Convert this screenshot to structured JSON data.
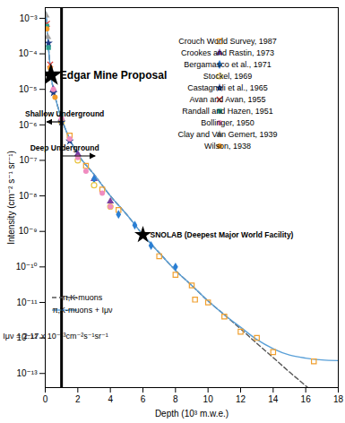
{
  "chart_data": {
    "type": "scatter",
    "x_label": "Depth (10³ m.w.e.)",
    "y_label": "Intensity (cm⁻² s⁻¹ sr⁻¹)",
    "log": "y",
    "xlim": [
      0,
      18
    ],
    "xticks": [
      0,
      2,
      4,
      6,
      8,
      10,
      12,
      14,
      16,
      18
    ],
    "ylim": [
      4e-14,
      0.002
    ],
    "yticks": [
      {
        "value": 0.001,
        "label": "10⁻³"
      },
      {
        "value": 0.0001,
        "label": "10⁻⁴"
      },
      {
        "value": 1e-05,
        "label": "10⁻⁵"
      },
      {
        "value": 1e-06,
        "label": "10⁻⁶"
      },
      {
        "value": 1e-07,
        "label": "10⁻⁷"
      },
      {
        "value": 1e-08,
        "label": "10⁻⁸"
      },
      {
        "value": 1e-09,
        "label": "10⁻⁹"
      },
      {
        "value": 1e-10,
        "label": "10⁻¹⁰"
      },
      {
        "value": 1e-11,
        "label": "10⁻¹¹"
      },
      {
        "value": 1e-12,
        "label": "10⁻¹²"
      },
      {
        "value": 1e-13,
        "label": "10⁻¹³"
      }
    ],
    "legend": "top-right",
    "series": [
      {
        "name": "Crouch World Survey, 1987",
        "color": "#f0a030",
        "marker": "open_square",
        "x": [
          1.5,
          2.5,
          3.5,
          4.5,
          6,
          7,
          8,
          9,
          9.2,
          10,
          11,
          12,
          13,
          14,
          16.5
        ],
        "values": [
          5e-07,
          7e-08,
          1.5e-08,
          4e-09,
          8e-10,
          2e-10,
          6e-11,
          3e-11,
          1.2e-11,
          1e-11,
          4e-12,
          1.5e-12,
          1e-12,
          4e-13,
          2.2e-13
        ]
      },
      {
        "name": "Crookes and Rastin, 1973",
        "color": "#7b3fa0",
        "marker": "triangle",
        "x": [
          0.5,
          1,
          2,
          3,
          4
        ],
        "values": [
          1e-05,
          1.5e-06,
          1.5e-07,
          3e-08,
          7e-09
        ]
      },
      {
        "name": "Bergamasco et al., 1971",
        "color": "#2a7fd4",
        "marker": "diamond",
        "x": [
          3,
          4.5,
          5.5,
          6.5,
          8
        ],
        "values": [
          3e-08,
          3e-09,
          1.5e-09,
          4e-10,
          1e-10
        ]
      },
      {
        "name": "Stockel, 1969",
        "color": "#e8c440",
        "marker": "open_circle",
        "x": [
          1,
          2,
          3,
          4
        ],
        "values": [
          1.2e-06,
          1e-07,
          2e-08,
          5e-09
        ]
      },
      {
        "name": "Castagnoli et al., 1965",
        "color": "#1f3c88",
        "marker": "star",
        "x": [
          0.2,
          0.5,
          1,
          1.5
        ],
        "values": [
          0.0002,
          8e-06,
          1.2e-06,
          3.5e-07
        ]
      },
      {
        "name": "Avan and Avan, 1955",
        "color": "#e0302a",
        "marker": "x",
        "x": [
          0.1,
          0.3
        ],
        "values": [
          0.0007,
          5e-05
        ]
      },
      {
        "name": "Randall and Hazen, 1951",
        "color": "#2e9e8f",
        "marker": "square",
        "x": [
          0.1,
          0.2
        ],
        "values": [
          0.0006,
          0.00015
        ]
      },
      {
        "name": "Bollinger, 1950",
        "color": "#f08cc0",
        "marker": "circle",
        "x": [
          0.5,
          1,
          1.5,
          2,
          2.5,
          3.5,
          4
        ],
        "values": [
          1e-05,
          1.5e-06,
          4e-07,
          1.2e-07,
          5e-08,
          1.2e-08,
          5e-09
        ]
      },
      {
        "name": "Clay and Van Gemert, 1939",
        "color": "#a0a0a0",
        "marker": "triangle",
        "x": [
          0.05,
          0.15
        ],
        "values": [
          0.0012,
          0.0003
        ]
      },
      {
        "name": "Wilson, 1938",
        "color": "#f39a2b",
        "marker": "circle",
        "x": [
          0.1,
          0.3,
          0.6
        ],
        "values": [
          0.0005,
          4e-05,
          6e-06
        ]
      },
      {
        "name": "π,K-muons",
        "type": "line",
        "line_style": "dashed",
        "color": "#555555",
        "x": [
          0.05,
          0.1,
          0.2,
          0.35,
          0.5,
          0.75,
          1,
          1.5,
          2,
          3,
          4,
          5,
          6,
          7,
          8,
          9,
          10,
          11,
          12,
          13,
          14,
          15,
          16,
          17
        ],
        "values": [
          0.0015,
          0.0006,
          0.00015,
          2.5e-05,
          1e-05,
          3.5e-06,
          1.5e-06,
          4e-07,
          1.5e-07,
          4e-08,
          1e-08,
          3e-09,
          8e-10,
          2.5e-10,
          8e-11,
          3e-11,
          1.1e-11,
          4.5e-12,
          1.8e-12,
          7e-13,
          2.8e-13,
          1.1e-13,
          4.5e-14,
          1.8e-14
        ]
      },
      {
        "name": "π,K-muons + Iμν",
        "type": "line",
        "line_style": "solid",
        "color": "#5aa0d8",
        "x": [
          0.05,
          0.1,
          0.2,
          0.35,
          0.5,
          0.75,
          1,
          1.5,
          2,
          3,
          4,
          5,
          6,
          7,
          8,
          9,
          10,
          11,
          12,
          13,
          14,
          15,
          16,
          17,
          18
        ],
        "values": [
          0.0015,
          0.0006,
          0.00015,
          2.5e-05,
          1e-05,
          3.5e-06,
          1.5e-06,
          4e-07,
          1.5e-07,
          4e-08,
          1e-08,
          3e-09,
          8e-10,
          2.5e-10,
          8e-11,
          3e-11,
          1.1e-11,
          4.5e-12,
          2e-12,
          9e-13,
          5e-13,
          3.3e-13,
          2.7e-13,
          2.4e-13,
          2.3e-13
        ]
      }
    ],
    "vertical_line": {
      "x": 1,
      "left_label": "Shallow Underground",
      "right_label": "Deep Underground"
    },
    "annotations": [
      {
        "text": "Edgar Mine Proposal",
        "x": 0.35,
        "y": 2.5e-05,
        "marker": "star"
      },
      {
        "text": "SNOLAB (Deepest Major World Facility)",
        "x": 6,
        "y": 8e-10,
        "marker": "star"
      }
    ],
    "note": "Iμν = 2.17 x 10⁻¹³cm⁻²s⁻¹sr⁻¹"
  }
}
